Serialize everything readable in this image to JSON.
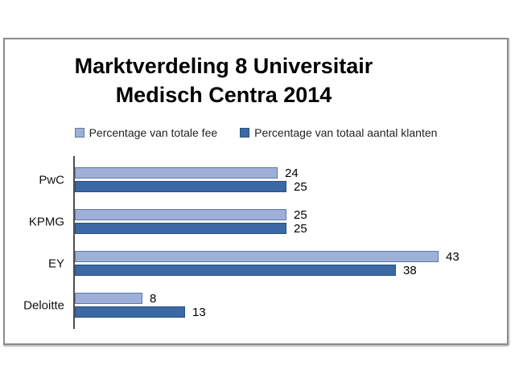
{
  "chart_data": {
    "type": "bar",
    "orientation": "horizontal",
    "title": "Marktverdeling 8 Universitair Medisch Centra 2014",
    "title_lines": [
      "Marktverdeling 8 Universitair",
      "Medisch Centra 2014"
    ],
    "categories": [
      "PwC",
      "KPMG",
      "EY",
      "Deloitte"
    ],
    "series": [
      {
        "name": "Percentage van totale fee",
        "values": [
          24,
          25,
          43,
          8
        ],
        "color": "#9FB0D8",
        "border_color": "#5B79AC"
      },
      {
        "name": "Percentage van totaal aantal klanten",
        "values": [
          25,
          25,
          38,
          13
        ],
        "color": "#3A69A5",
        "border_color": "#2B5180"
      }
    ],
    "xlim": [
      0,
      45
    ],
    "data_labels": true,
    "legend_position": "top",
    "grid": false,
    "axis_color": "#4F4F4F",
    "category_order": "top-to-bottom: PwC, KPMG, EY, Deloitte"
  }
}
